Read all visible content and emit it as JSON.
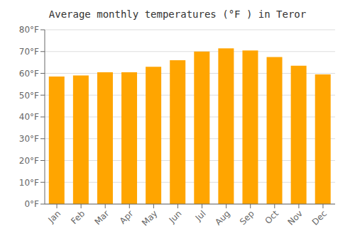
{
  "chart_data": {
    "type": "bar",
    "title": "Average monthly temperatures (°F ) in Teror",
    "categories": [
      "Jan",
      "Feb",
      "Mar",
      "Apr",
      "May",
      "Jun",
      "Jul",
      "Aug",
      "Sep",
      "Oct",
      "Nov",
      "Dec"
    ],
    "values": [
      58.5,
      59.0,
      60.5,
      60.5,
      63.0,
      66.0,
      70.0,
      71.5,
      70.5,
      67.5,
      63.5,
      59.5
    ],
    "color": "#FFA500",
    "ylim": [
      0,
      80
    ],
    "yticks": [
      {
        "value": 0,
        "label": "0°F"
      },
      {
        "value": 10,
        "label": "10°F"
      },
      {
        "value": 20,
        "label": "20°F"
      },
      {
        "value": 30,
        "label": "30°F"
      },
      {
        "value": 40,
        "label": "40°F"
      },
      {
        "value": 50,
        "label": "50°F"
      },
      {
        "value": 60,
        "label": "60°F"
      },
      {
        "value": 70,
        "label": "70°F"
      },
      {
        "value": 80,
        "label": "80°F"
      }
    ],
    "grid": true
  }
}
